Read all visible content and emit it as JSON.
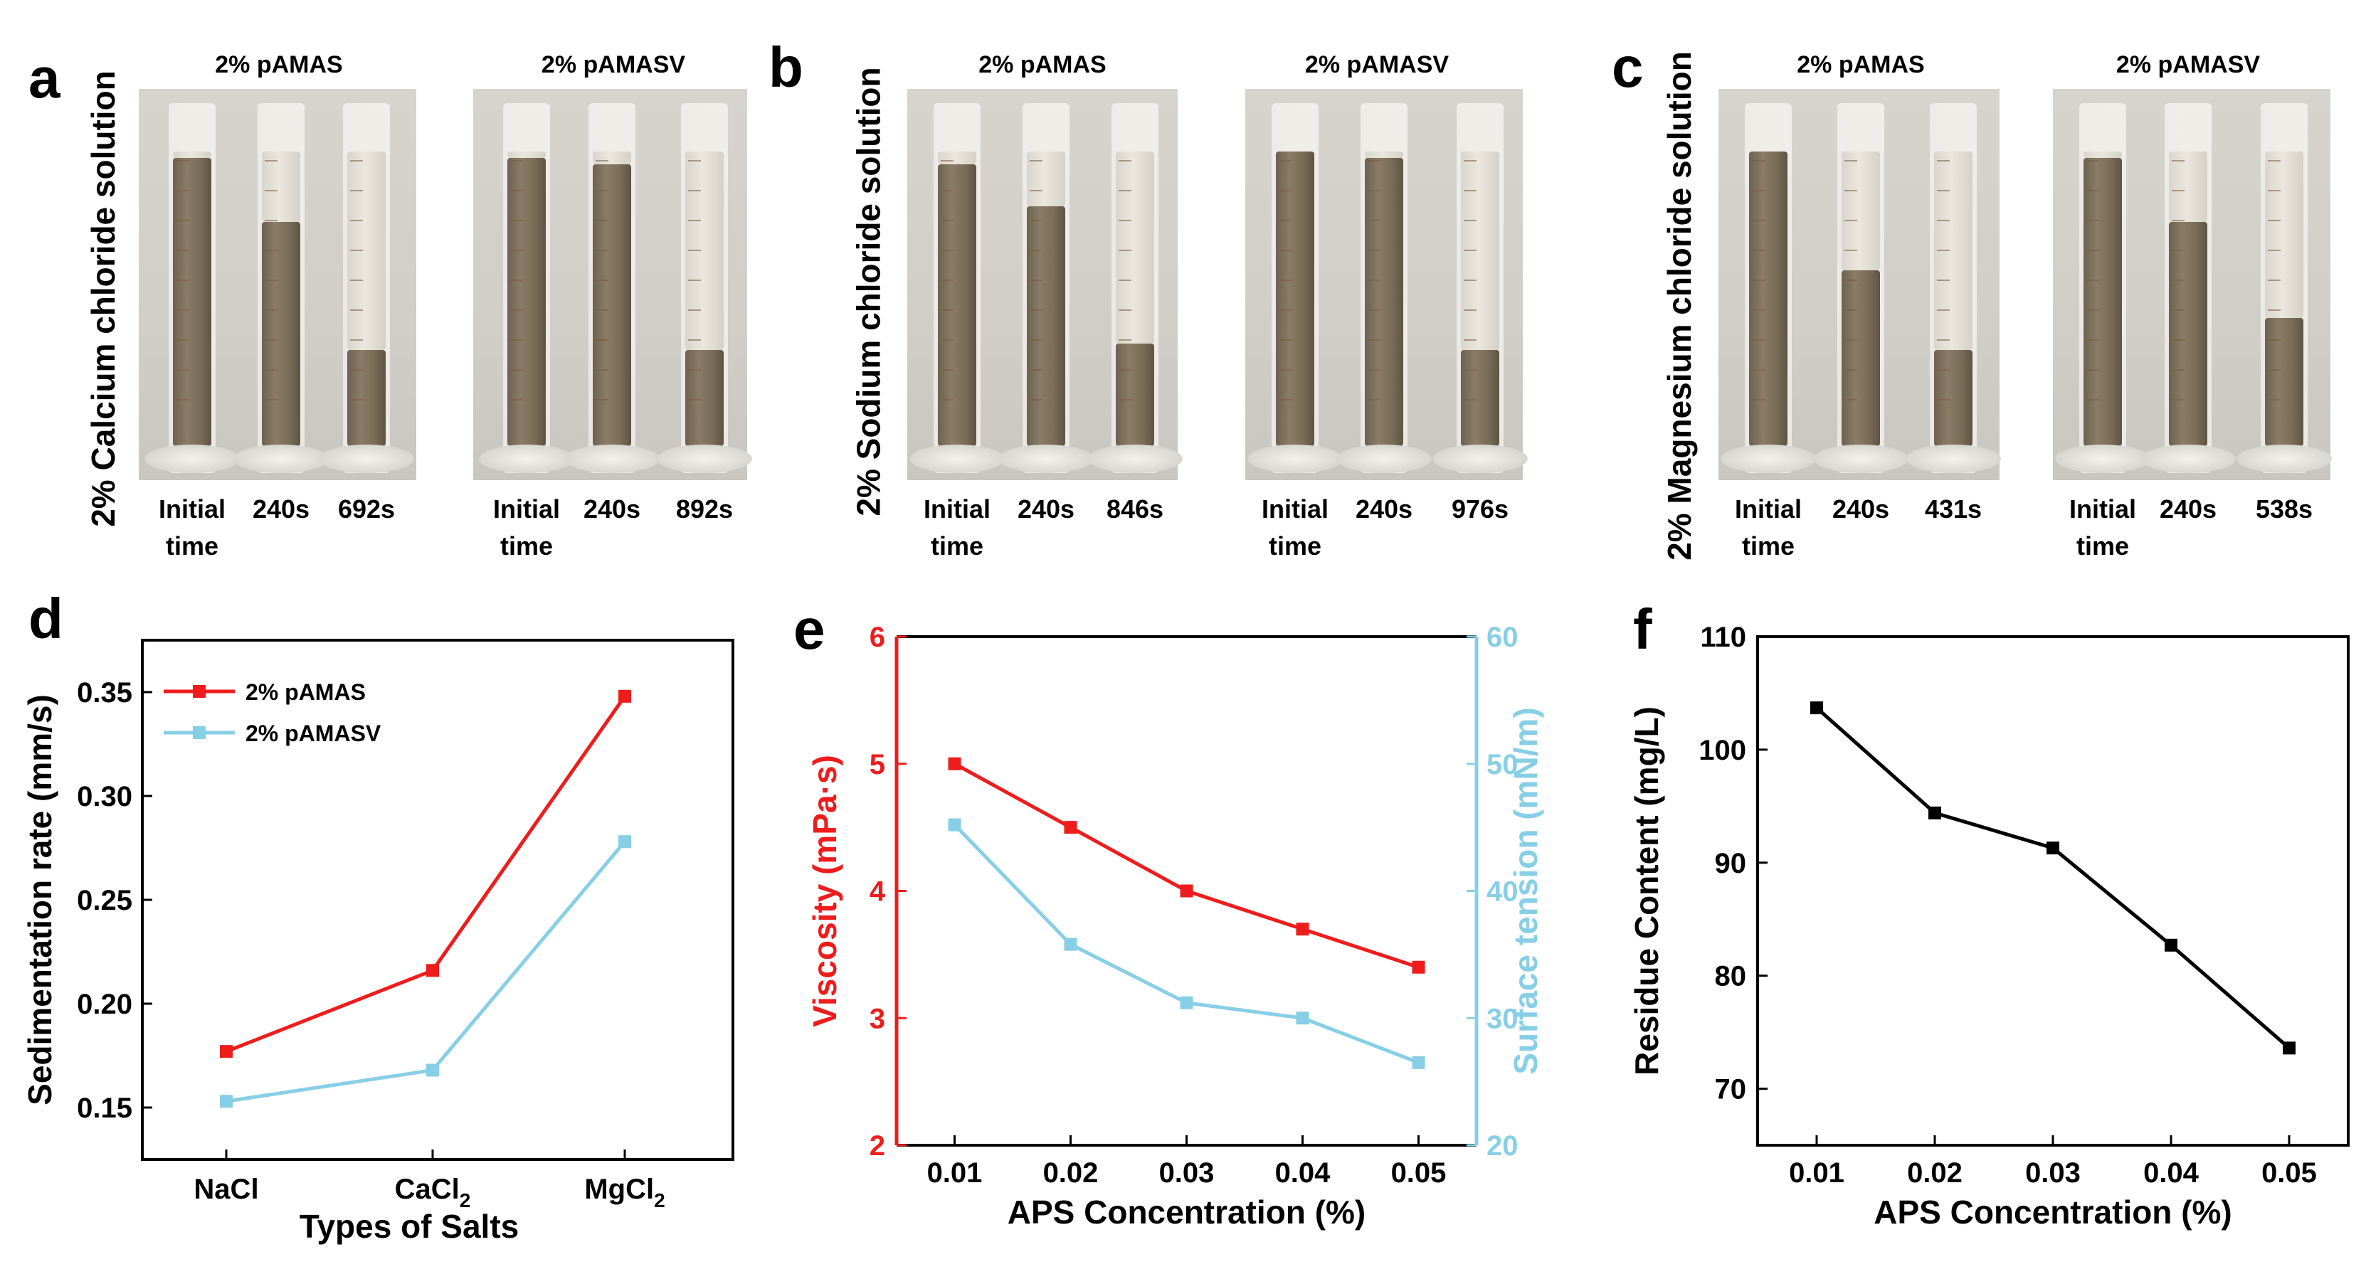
{
  "panels": {
    "a": "a",
    "b": "b",
    "c": "c",
    "d": "d",
    "e": "e",
    "f": "f"
  },
  "photo_rows": [
    {
      "letter": "a",
      "label": "2% Calcium chloride solution",
      "groups": [
        {
          "title": "2% pAMAS",
          "times": [
            "Initial\ntime",
            "240s",
            "692s"
          ],
          "fill_fraction": [
            0.9,
            0.7,
            0.3
          ]
        },
        {
          "title": "2% pAMASV",
          "times": [
            "Initial\ntime",
            "240s",
            "892s"
          ],
          "fill_fraction": [
            0.9,
            0.88,
            0.3
          ]
        }
      ]
    },
    {
      "letter": "b",
      "label": "2% Sodium chloride solution",
      "groups": [
        {
          "title": "2% pAMAS",
          "times": [
            "Initial\ntime",
            "240s",
            "846s"
          ],
          "fill_fraction": [
            0.88,
            0.75,
            0.32
          ]
        },
        {
          "title": "2% pAMASV",
          "times": [
            "Initial\ntime",
            "240s",
            "976s"
          ],
          "fill_fraction": [
            0.92,
            0.9,
            0.3
          ]
        }
      ]
    },
    {
      "letter": "c",
      "label": "2% Magnesium chloride solution",
      "groups": [
        {
          "title": "2% pAMAS",
          "times": [
            "Initial\ntime",
            "240s",
            "431s"
          ],
          "fill_fraction": [
            0.92,
            0.55,
            0.3
          ]
        },
        {
          "title": "2% pAMASV",
          "times": [
            "Initial\ntime",
            "240s",
            "538s"
          ],
          "fill_fraction": [
            0.9,
            0.7,
            0.4
          ]
        }
      ]
    }
  ],
  "chart_data": [
    {
      "id": "d",
      "type": "line",
      "categories": [
        "NaCl",
        "CaCl₂",
        "MgCl₂"
      ],
      "category_labels": [
        {
          "base": "NaCl",
          "sub": ""
        },
        {
          "base": "CaCl",
          "sub": "2"
        },
        {
          "base": "MgCl",
          "sub": "2"
        }
      ],
      "series": [
        {
          "name": "2% pAMAS",
          "color": "#ee1c1c",
          "values": [
            0.177,
            0.216,
            0.348
          ]
        },
        {
          "name": "2% pAMASV",
          "color": "#87cfe6",
          "values": [
            0.153,
            0.168,
            0.278
          ]
        }
      ],
      "xlabel": "Types of Salts",
      "ylabel": "Sedimentation rate (mm/s)",
      "ylim": [
        0.125,
        0.375
      ],
      "yticks": [
        0.15,
        0.2,
        0.25,
        0.3,
        0.35
      ],
      "ytick_labels": [
        "0.15",
        "0.20",
        "0.25",
        "0.30",
        "0.35"
      ],
      "legend": "top-left"
    },
    {
      "id": "e",
      "type": "line",
      "x": [
        0.01,
        0.02,
        0.03,
        0.04,
        0.05
      ],
      "xtick_labels": [
        "0.01",
        "0.02",
        "0.03",
        "0.04",
        "0.05"
      ],
      "xlabel": "APS Concentration (%)",
      "xlim": [
        0.005,
        0.055
      ],
      "series": [
        {
          "name": "Viscosity",
          "axis": "left",
          "color": "#ee1c1c",
          "values": [
            5.0,
            4.5,
            4.0,
            3.7,
            3.4
          ]
        },
        {
          "name": "Surface tension",
          "axis": "right",
          "color": "#87cfe6",
          "values": [
            45.2,
            35.8,
            31.2,
            30.0,
            26.5
          ]
        }
      ],
      "ylabel_left": "Viscosity (mPa·s)",
      "ylim_left": [
        2,
        6
      ],
      "yticks_left": [
        "2",
        "3",
        "4",
        "5",
        "6"
      ],
      "ylabel_right": "Surface tension (mN/m)",
      "ylim_right": [
        20,
        60
      ],
      "yticks_right": [
        "20",
        "30",
        "40",
        "50",
        "60"
      ]
    },
    {
      "id": "f",
      "type": "line",
      "x": [
        0.01,
        0.02,
        0.03,
        0.04,
        0.05
      ],
      "xtick_labels": [
        "0.01",
        "0.02",
        "0.03",
        "0.04",
        "0.05"
      ],
      "xlabel": "APS Concentration (%)",
      "xlim": [
        0.005,
        0.055
      ],
      "series": [
        {
          "name": "Residue Content",
          "color": "#000000",
          "values": [
            103.7,
            94.4,
            91.3,
            82.7,
            73.6
          ]
        }
      ],
      "ylabel": "Residue Content (mg/L)",
      "ylim": [
        65,
        110
      ],
      "yticks": [
        70,
        80,
        90,
        100,
        110
      ],
      "ytick_labels": [
        "70",
        "80",
        "90",
        "100",
        "110"
      ]
    }
  ]
}
